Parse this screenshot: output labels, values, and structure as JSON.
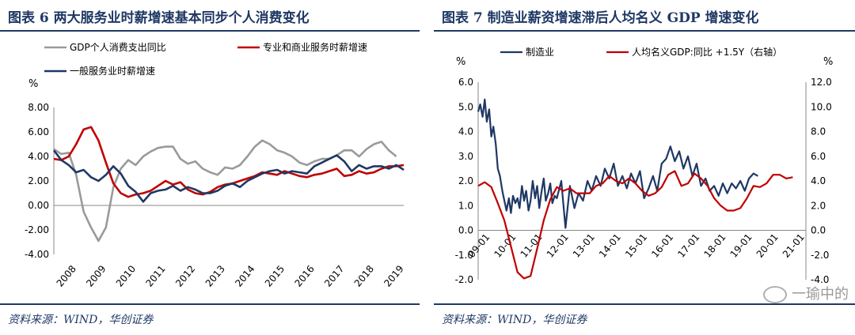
{
  "chart_data": [
    {
      "type": "line",
      "title": "图表 6   两大服务业时薪增速基本同步个人消费变化",
      "source": "资料来源：WIND，华创证券",
      "ylabel": "%",
      "ylim": [
        -4,
        8
      ],
      "yticks": [
        "8.00",
        "6.00",
        "4.00",
        "2.00",
        "0.00",
        "-2.00",
        "-4.00"
      ],
      "xlim": [
        2008,
        2019.75
      ],
      "xticks": [
        "2008",
        "2009",
        "2010",
        "2011",
        "2012",
        "2013",
        "2014",
        "2015",
        "2016",
        "2017",
        "2018",
        "2019"
      ],
      "legend": [
        "GDP个人消费支出同比",
        "专业和商业服务时薪增速",
        "一般服务业时薪增速"
      ],
      "series": [
        {
          "name": "GDP个人消费支出同比",
          "color": "#9a9a9a",
          "x": [
            2008,
            2008.25,
            2008.5,
            2008.75,
            2009,
            2009.25,
            2009.5,
            2009.75,
            2010,
            2010.25,
            2010.5,
            2010.75,
            2011,
            2011.25,
            2011.5,
            2011.75,
            2012,
            2012.25,
            2012.5,
            2012.75,
            2013,
            2013.25,
            2013.5,
            2013.75,
            2014,
            2014.25,
            2014.5,
            2014.75,
            2015,
            2015.25,
            2015.5,
            2015.75,
            2016,
            2016.25,
            2016.5,
            2016.75,
            2017,
            2017.25,
            2017.5,
            2017.75,
            2018,
            2018.25,
            2018.5,
            2018.75,
            2019,
            2019.25,
            2019.5
          ],
          "y": [
            4.6,
            4.2,
            4.3,
            2.5,
            -0.5,
            -1.8,
            -2.9,
            -1.8,
            1.5,
            3.0,
            3.7,
            3.3,
            4.0,
            4.4,
            4.7,
            4.8,
            4.8,
            3.8,
            3.4,
            3.6,
            3.0,
            2.7,
            2.5,
            3.1,
            3.0,
            3.3,
            4.0,
            4.8,
            5.3,
            5.0,
            4.5,
            4.3,
            4.0,
            3.5,
            3.3,
            3.6,
            3.8,
            3.8,
            4.1,
            4.5,
            4.5,
            4.0,
            4.6,
            5.0,
            5.2,
            4.5,
            4.0
          ]
        },
        {
          "name": "专业和商业服务时薪增速",
          "color": "#c00000",
          "x": [
            2008,
            2008.25,
            2008.5,
            2008.75,
            2009,
            2009.25,
            2009.5,
            2009.75,
            2010,
            2010.25,
            2010.5,
            2010.75,
            2011,
            2011.25,
            2011.5,
            2011.75,
            2012,
            2012.25,
            2012.5,
            2012.75,
            2013,
            2013.25,
            2013.5,
            2013.75,
            2014,
            2014.25,
            2014.5,
            2014.75,
            2015,
            2015.25,
            2015.5,
            2015.75,
            2016,
            2016.25,
            2016.5,
            2016.75,
            2017,
            2017.25,
            2017.5,
            2017.75,
            2018,
            2018.25,
            2018.5,
            2018.75,
            2019,
            2019.25,
            2019.5,
            2019.75
          ],
          "y": [
            3.8,
            3.7,
            4.0,
            5.0,
            6.2,
            6.4,
            5.3,
            3.5,
            1.8,
            1.0,
            0.7,
            0.9,
            1.0,
            1.2,
            1.6,
            2.0,
            1.7,
            1.9,
            1.3,
            1.0,
            0.9,
            1.1,
            1.5,
            1.7,
            1.8,
            2.0,
            2.2,
            2.4,
            2.7,
            2.6,
            2.5,
            2.8,
            2.6,
            2.4,
            2.3,
            2.5,
            2.6,
            2.8,
            3.0,
            2.4,
            2.5,
            2.8,
            2.6,
            2.7,
            3.0,
            3.2,
            3.2,
            3.3
          ]
        },
        {
          "name": "一般服务业时薪增速",
          "color": "#1f3864",
          "x": [
            2008,
            2008.25,
            2008.5,
            2008.75,
            2009,
            2009.25,
            2009.5,
            2009.75,
            2010,
            2010.25,
            2010.5,
            2010.75,
            2011,
            2011.25,
            2011.5,
            2011.75,
            2012,
            2012.25,
            2012.5,
            2012.75,
            2013,
            2013.25,
            2013.5,
            2013.75,
            2014,
            2014.25,
            2014.5,
            2014.75,
            2015,
            2015.25,
            2015.5,
            2015.75,
            2016,
            2016.25,
            2016.5,
            2016.75,
            2017,
            2017.25,
            2017.5,
            2017.75,
            2018,
            2018.25,
            2018.5,
            2018.75,
            2019,
            2019.25,
            2019.5,
            2019.75
          ],
          "y": [
            4.5,
            3.7,
            3.3,
            2.7,
            2.9,
            2.3,
            2.0,
            2.5,
            3.2,
            2.6,
            1.6,
            1.1,
            0.3,
            1.0,
            1.2,
            1.3,
            1.6,
            1.2,
            1.5,
            1.3,
            1.0,
            1.0,
            1.2,
            1.6,
            1.8,
            1.5,
            2.0,
            2.3,
            2.6,
            2.8,
            2.9,
            2.6,
            2.8,
            2.7,
            2.6,
            3.2,
            3.5,
            3.8,
            4.1,
            3.6,
            2.8,
            3.3,
            3.0,
            3.2,
            3.2,
            3.0,
            3.3,
            2.9
          ]
        }
      ]
    },
    {
      "type": "line",
      "title": "图表 7   制造业薪资增速滞后人均名义 GDP 增速变化",
      "source": "资料来源：WIND，华创证券",
      "ylabel": "%",
      "y2label": "%",
      "ylim": [
        -2,
        6
      ],
      "y2lim": [
        -4,
        12
      ],
      "yticks": [
        "6.0",
        "5.0",
        "4.0",
        "3.0",
        "2.0",
        "1.0",
        "0.0",
        "-1.0",
        "-2.0"
      ],
      "y2ticks": [
        "12.0",
        "10.0",
        "8.0",
        "6.0",
        "4.0",
        "2.0",
        "0.0",
        "-2.0",
        "-4.0"
      ],
      "xlim": [
        2009,
        2021.5
      ],
      "xticks": [
        "09-01",
        "10-01",
        "11-01",
        "12-01",
        "13-01",
        "14-01",
        "15-01",
        "16-01",
        "17-01",
        "18-01",
        "19-01",
        "20-01",
        "21-01"
      ],
      "legend": [
        "制造业",
        "人均名义GDP:同比 +1.5Y（右轴）"
      ],
      "series": [
        {
          "name": "制造业",
          "color": "#1f3864",
          "axis": "left",
          "x": [
            2009,
            2009.08,
            2009.17,
            2009.25,
            2009.33,
            2009.42,
            2009.5,
            2009.58,
            2009.67,
            2009.75,
            2009.83,
            2009.92,
            2010,
            2010.08,
            2010.17,
            2010.25,
            2010.33,
            2010.42,
            2010.5,
            2010.58,
            2010.67,
            2010.75,
            2010.83,
            2010.92,
            2011,
            2011.08,
            2011.17,
            2011.25,
            2011.33,
            2011.42,
            2011.5,
            2011.58,
            2011.67,
            2011.75,
            2011.83,
            2011.92,
            2012,
            2012.17,
            2012.33,
            2012.5,
            2012.67,
            2012.83,
            2013,
            2013.17,
            2013.33,
            2013.5,
            2013.67,
            2013.83,
            2014,
            2014.17,
            2014.33,
            2014.5,
            2014.67,
            2014.83,
            2015,
            2015.17,
            2015.33,
            2015.5,
            2015.67,
            2015.83,
            2016,
            2016.17,
            2016.33,
            2016.5,
            2016.67,
            2016.83,
            2017,
            2017.17,
            2017.33,
            2017.5,
            2017.67,
            2017.83,
            2018,
            2018.17,
            2018.33,
            2018.5,
            2018.67,
            2018.83,
            2019,
            2019.17,
            2019.33,
            2019.5,
            2019.67
          ],
          "y": [
            4.8,
            5.1,
            4.6,
            5.3,
            4.4,
            4.9,
            3.8,
            4.2,
            3.5,
            2.5,
            2.2,
            1.6,
            1.2,
            0.8,
            1.3,
            0.7,
            1.4,
            1.1,
            1.3,
            0.9,
            1.8,
            1.2,
            1.6,
            0.8,
            1.2,
            2.0,
            1.3,
            1.8,
            0.9,
            1.6,
            2.1,
            1.2,
            1.5,
            1.9,
            1.1,
            1.4,
            1.3,
            2.0,
            0.1,
            1.8,
            0.9,
            1.5,
            1.2,
            2.0,
            1.6,
            2.2,
            1.8,
            2.5,
            2.1,
            2.7,
            1.8,
            2.2,
            1.7,
            2.3,
            1.9,
            2.4,
            1.3,
            1.7,
            2.2,
            1.6,
            2.7,
            2.9,
            3.4,
            2.8,
            3.2,
            2.5,
            3.0,
            2.2,
            2.7,
            1.8,
            2.1,
            1.6,
            1.8,
            1.4,
            1.9,
            1.5,
            1.9,
            1.7,
            2.0,
            1.6,
            2.1,
            2.3,
            2.2
          ]
        },
        {
          "name": "人均名义GDP:同比 +1.5Y（右轴）",
          "color": "#c00000",
          "axis": "right",
          "x": [
            2009,
            2009.25,
            2009.5,
            2009.75,
            2010,
            2010.25,
            2010.5,
            2010.75,
            2011,
            2011.25,
            2011.5,
            2011.75,
            2012,
            2012.25,
            2012.5,
            2012.75,
            2013,
            2013.25,
            2013.5,
            2013.75,
            2014,
            2014.25,
            2014.5,
            2014.75,
            2015,
            2015.25,
            2015.5,
            2015.75,
            2016,
            2016.25,
            2016.5,
            2016.75,
            2017,
            2017.25,
            2017.5,
            2017.75,
            2018,
            2018.25,
            2018.5,
            2018.75,
            2019,
            2019.25,
            2019.5,
            2019.75,
            2020,
            2020.25,
            2020.5,
            2020.75,
            2021
          ],
          "y": [
            3.6,
            3.9,
            3.5,
            2.2,
            0.8,
            -1.3,
            -3.4,
            -3.9,
            -3.7,
            -1.5,
            0.8,
            2.5,
            3.5,
            3.2,
            3.4,
            3.0,
            3.0,
            3.0,
            3.6,
            3.8,
            4.4,
            4.0,
            3.8,
            4.2,
            3.8,
            3.2,
            2.8,
            3.0,
            3.5,
            4.5,
            4.8,
            3.6,
            3.8,
            4.6,
            4.2,
            3.6,
            2.6,
            2.0,
            1.6,
            1.6,
            1.8,
            2.6,
            3.6,
            3.5,
            3.8,
            4.5,
            4.5,
            4.2,
            4.3
          ]
        }
      ]
    }
  ],
  "watermark": "一瑜中的"
}
